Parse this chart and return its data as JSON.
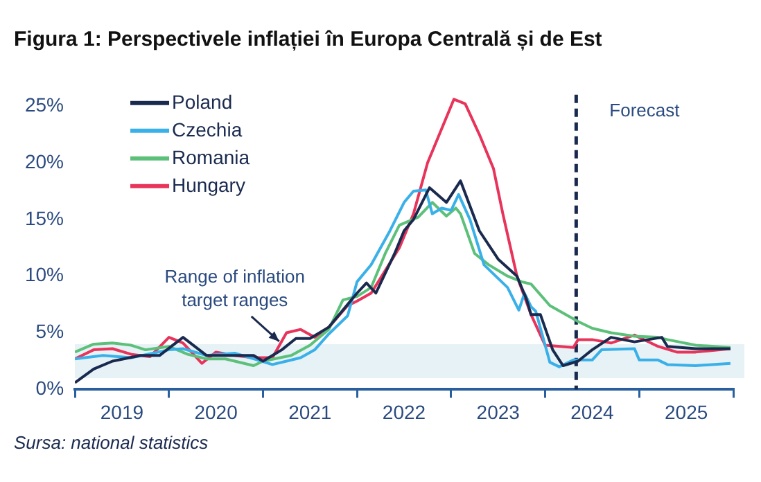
{
  "chart_data": {
    "type": "line",
    "title": "Figura 1: Perspectivele inflației în Europa Centrală și de Est",
    "annotations": [
      "Sursa: national statistics"
    ],
    "xlim": [
      2019,
      2026
    ],
    "xticks": [
      {
        "value": 2019,
        "label": null
      },
      {
        "value": 2019.5,
        "label": "2019"
      },
      {
        "value": 2020,
        "label": null
      },
      {
        "value": 2020.5,
        "label": "2020"
      },
      {
        "value": 2021,
        "label": null
      },
      {
        "value": 2021.5,
        "label": "2021"
      },
      {
        "value": 2022,
        "label": null
      },
      {
        "value": 2022.5,
        "label": "2022"
      },
      {
        "value": 2023,
        "label": null
      },
      {
        "value": 2023.5,
        "label": "2023"
      },
      {
        "value": 2024,
        "label": null
      },
      {
        "value": 2024.5,
        "label": "2024"
      },
      {
        "value": 2025,
        "label": null
      },
      {
        "value": 2025.5,
        "label": "2025"
      },
      {
        "value": 2026,
        "label": null
      }
    ],
    "ylim": [
      0,
      26
    ],
    "yticks": [
      {
        "value": 0,
        "label": "0%"
      },
      {
        "value": 5,
        "label": "5%"
      },
      {
        "value": 10,
        "label": "10%"
      },
      {
        "value": 15,
        "label": "15%"
      },
      {
        "value": 20,
        "label": "20%"
      },
      {
        "value": 25,
        "label": "25%"
      }
    ],
    "grid": false,
    "legend": "top left",
    "line_style": "solid",
    "marker": "none",
    "bands": [
      {
        "axis": "y",
        "from": 1,
        "to": 4,
        "label": "Range of inflation target ranges",
        "color": "#e6f2f5"
      }
    ],
    "ref_lines": [
      {
        "axis": "x",
        "value": 2024.33,
        "color": "#1a2a4f",
        "line_style": "dashed",
        "label": "Forecast"
      }
    ],
    "series": [
      {
        "name": "Poland",
        "color": "#1a2a4f",
        "x": [
          2019.0,
          2019.2,
          2019.4,
          2019.7,
          2019.9,
          2020.15,
          2020.4,
          2020.6,
          2020.9,
          2021.0,
          2021.2,
          2021.35,
          2021.5,
          2021.7,
          2021.9,
          2022.0,
          2022.1,
          2022.2,
          2022.4,
          2022.5,
          2022.6,
          2022.77,
          2022.95,
          2023.1,
          2023.3,
          2023.5,
          2023.7,
          2023.8,
          2023.85,
          2023.95,
          2024.08,
          2024.19,
          2024.35,
          2024.5,
          2024.7,
          2024.95,
          2025.24,
          2025.3,
          2025.6,
          2025.97
        ],
        "values": [
          0.6,
          1.8,
          2.5,
          3.0,
          3.0,
          4.6,
          3.0,
          3.0,
          3.0,
          2.5,
          3.5,
          4.5,
          4.5,
          5.5,
          7.5,
          8.5,
          9.4,
          8.5,
          12,
          14,
          15,
          17.8,
          16.5,
          18.4,
          14,
          11.5,
          10,
          8,
          6.6,
          6.6,
          3.5,
          2.1,
          2.5,
          3.5,
          4.6,
          4.2,
          4.6,
          3.8,
          3.6,
          3.6
        ]
      },
      {
        "name": "Czechia",
        "color": "#3ab0e8",
        "x": [
          2019.0,
          2019.3,
          2019.6,
          2020.0,
          2020.15,
          2020.4,
          2020.7,
          2020.9,
          2021.1,
          2021.25,
          2021.4,
          2021.55,
          2021.7,
          2021.9,
          2022.0,
          2022.15,
          2022.35,
          2022.5,
          2022.6,
          2022.73,
          2022.8,
          2022.9,
          2023.0,
          2023.08,
          2023.2,
          2023.35,
          2023.6,
          2023.72,
          2023.78,
          2023.85,
          2023.9,
          2024.05,
          2024.15,
          2024.3,
          2024.5,
          2024.6,
          2024.95,
          2025.0,
          2025.2,
          2025.3,
          2025.6,
          2025.97
        ],
        "values": [
          2.7,
          3.0,
          2.8,
          3.5,
          3.6,
          3.0,
          3.2,
          2.7,
          2.2,
          2.5,
          2.8,
          3.5,
          4.9,
          6.5,
          9.5,
          11,
          14,
          16.5,
          17.5,
          17.6,
          15.5,
          16,
          15.8,
          17.2,
          15,
          11,
          9,
          7,
          8.5,
          7.3,
          6.9,
          2.4,
          2.0,
          2.6,
          2.6,
          3.5,
          3.6,
          2.6,
          2.6,
          2.2,
          2.1,
          2.3
        ]
      },
      {
        "name": "Romania",
        "color": "#5cc07a",
        "x": [
          2019.0,
          2019.2,
          2019.4,
          2019.6,
          2019.75,
          2020.0,
          2020.2,
          2020.4,
          2020.6,
          2020.9,
          2021.0,
          2021.3,
          2021.5,
          2021.7,
          2021.85,
          2022.0,
          2022.15,
          2022.3,
          2022.45,
          2022.65,
          2022.8,
          2022.95,
          2023.05,
          2023.1,
          2023.25,
          2023.4,
          2023.6,
          2023.75,
          2023.85,
          2024.05,
          2024.2,
          2024.35,
          2024.5,
          2024.7,
          2024.95,
          2025.2,
          2025.3,
          2025.6,
          2025.97
        ],
        "values": [
          3.3,
          4.0,
          4.1,
          3.9,
          3.5,
          3.8,
          3.1,
          2.7,
          2.7,
          2.1,
          2.5,
          3.0,
          3.9,
          5.3,
          7.9,
          8.2,
          9.0,
          12,
          14.5,
          15.2,
          16.5,
          15.3,
          16.0,
          15.5,
          12,
          11,
          10,
          9.5,
          9.3,
          7.4,
          6.7,
          6.0,
          5.4,
          5.0,
          4.7,
          4.6,
          4.4,
          3.9,
          3.7
        ]
      },
      {
        "name": "Hungary",
        "color": "#e8335a",
        "x": [
          2019.0,
          2019.2,
          2019.4,
          2019.6,
          2019.8,
          2020.0,
          2020.15,
          2020.35,
          2020.5,
          2020.7,
          2020.9,
          2021.1,
          2021.25,
          2021.4,
          2021.55,
          2021.7,
          2021.9,
          2022.0,
          2022.15,
          2022.3,
          2022.45,
          2022.6,
          2022.75,
          2022.85,
          2023.03,
          2023.15,
          2023.3,
          2023.45,
          2023.55,
          2023.7,
          2023.85,
          2024.0,
          2024.3,
          2024.35,
          2024.5,
          2024.7,
          2024.95,
          2025.2,
          2025.4,
          2025.6,
          2025.97
        ],
        "values": [
          2.7,
          3.5,
          3.6,
          3.1,
          2.9,
          4.6,
          4.1,
          2.3,
          3.3,
          3.0,
          2.8,
          2.8,
          5.0,
          5.3,
          4.6,
          5.5,
          7.4,
          7.8,
          8.5,
          10.5,
          12.5,
          15.5,
          20.0,
          22,
          25.6,
          25.2,
          22.5,
          19.5,
          15.5,
          10,
          6.6,
          3.9,
          3.7,
          4.4,
          4.4,
          4.1,
          4.8,
          3.8,
          3.3,
          3.3,
          3.6
        ]
      }
    ]
  }
}
